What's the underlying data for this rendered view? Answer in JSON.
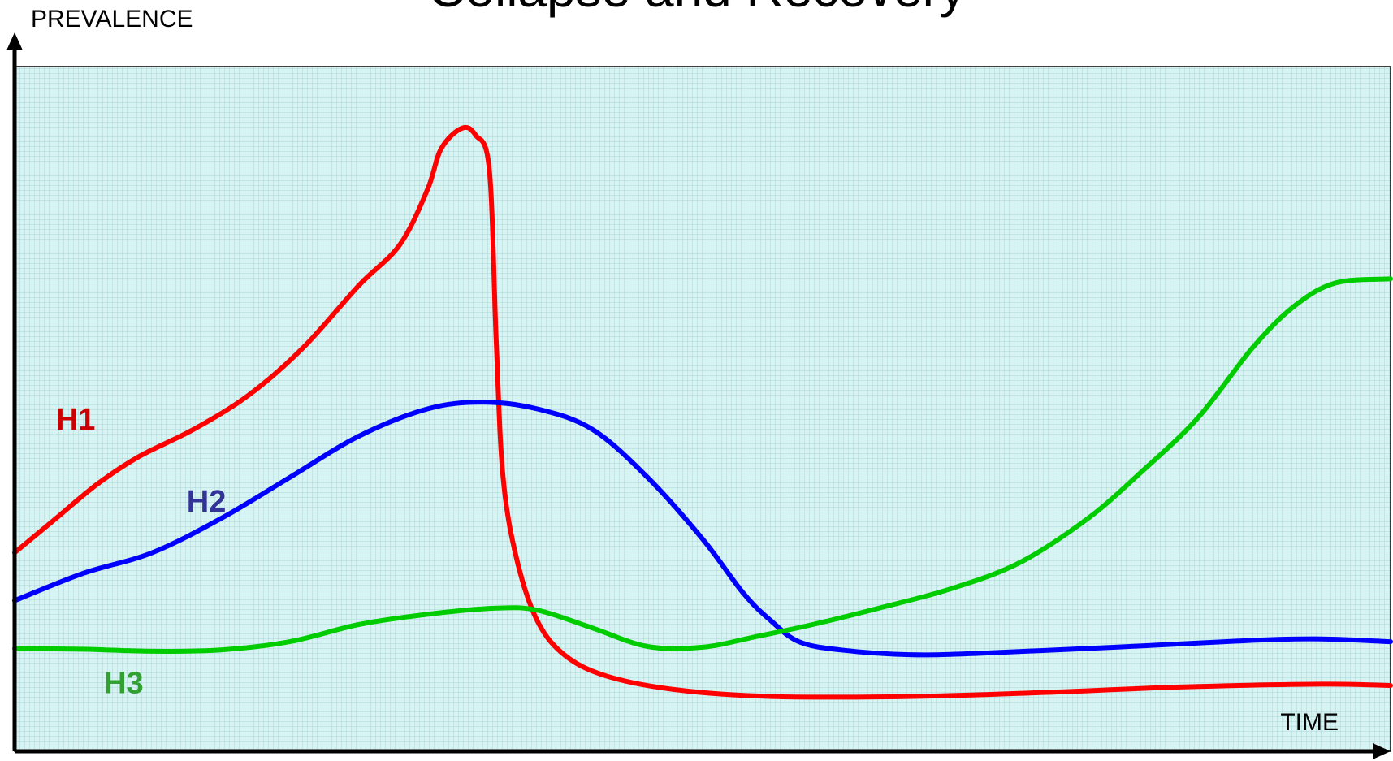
{
  "chart_data": {
    "type": "line",
    "title": "Collapse and Recovery",
    "xlabel": "TIME",
    "ylabel": "PREVALENCE",
    "xlim": [
      0,
      100
    ],
    "ylim": [
      0,
      100
    ],
    "grid": true,
    "colors": {
      "background": "#d9f2f2",
      "grid": "#a9d6d6",
      "axis": "#000000",
      "frame": "#000000"
    },
    "series": [
      {
        "name": "H1",
        "color": "#ff0000",
        "label_color": "#cc0000",
        "label_at": [
          3,
          47
        ],
        "points": [
          [
            0,
            29
          ],
          [
            3,
            34
          ],
          [
            6,
            39
          ],
          [
            9,
            43
          ],
          [
            13,
            47
          ],
          [
            17,
            52
          ],
          [
            21,
            59
          ],
          [
            25,
            68
          ],
          [
            28,
            74
          ],
          [
            30,
            82
          ],
          [
            31,
            88
          ],
          [
            32.5,
            91
          ],
          [
            33.5,
            90
          ],
          [
            34.5,
            85
          ],
          [
            35,
            60
          ],
          [
            35.5,
            40
          ],
          [
            36.5,
            28
          ],
          [
            38,
            19
          ],
          [
            40,
            14
          ],
          [
            43,
            11
          ],
          [
            48,
            9
          ],
          [
            55,
            8
          ],
          [
            65,
            8
          ],
          [
            75,
            8.6
          ],
          [
            85,
            9.4
          ],
          [
            95,
            9.8
          ],
          [
            100,
            9.6
          ]
        ]
      },
      {
        "name": "H2",
        "color": "#0000ff",
        "label_color": "#333399",
        "label_at": [
          12.5,
          35
        ],
        "points": [
          [
            0,
            22
          ],
          [
            5,
            26
          ],
          [
            10,
            29
          ],
          [
            15,
            34
          ],
          [
            20,
            40
          ],
          [
            25,
            46
          ],
          [
            30,
            50
          ],
          [
            34,
            51
          ],
          [
            38,
            50
          ],
          [
            42,
            47
          ],
          [
            46,
            40
          ],
          [
            50,
            31
          ],
          [
            53,
            23
          ],
          [
            55,
            19
          ],
          [
            57,
            16
          ],
          [
            60,
            14.8
          ],
          [
            65,
            14.1
          ],
          [
            70,
            14.3
          ],
          [
            80,
            15.2
          ],
          [
            90,
            16.2
          ],
          [
            95,
            16.4
          ],
          [
            100,
            16
          ]
        ]
      },
      {
        "name": "H3",
        "color": "#00cc00",
        "label_color": "#33a033",
        "label_at": [
          6.5,
          8.5
        ],
        "points": [
          [
            0,
            15
          ],
          [
            5,
            14.9
          ],
          [
            10,
            14.6
          ],
          [
            15,
            14.8
          ],
          [
            20,
            16
          ],
          [
            25,
            18.5
          ],
          [
            30,
            20
          ],
          [
            35,
            20.9
          ],
          [
            38,
            20.6
          ],
          [
            42,
            18
          ],
          [
            46,
            15.3
          ],
          [
            50,
            15.2
          ],
          [
            54,
            16.8
          ],
          [
            58,
            18.5
          ],
          [
            63,
            21
          ],
          [
            68,
            23.7
          ],
          [
            73,
            27.5
          ],
          [
            78,
            34
          ],
          [
            82,
            41
          ],
          [
            86,
            48.7
          ],
          [
            90,
            59
          ],
          [
            93,
            65
          ],
          [
            96,
            68.4
          ],
          [
            100,
            69
          ]
        ]
      }
    ]
  }
}
